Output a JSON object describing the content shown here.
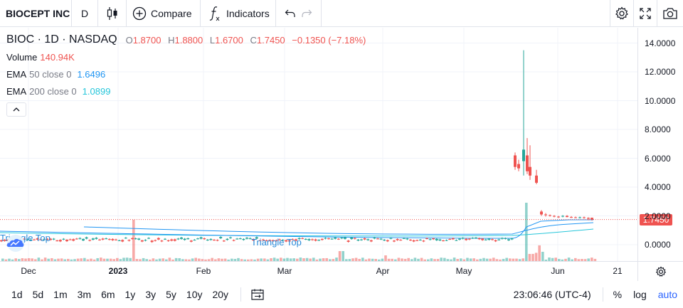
{
  "toolbar": {
    "symbol": "BIOCEPT INC",
    "interval": "D",
    "compare_label": "Compare",
    "indicators_label": "Indicators",
    "icons": [
      "candles-icon",
      "plus-circle-icon",
      "function-icon",
      "undo-icon",
      "redo-icon",
      "gear-icon",
      "fullscreen-icon",
      "camera-icon"
    ]
  },
  "legend": {
    "title": "BIOC · 1D · NASDAQ",
    "o_label": "O",
    "o_value": "1.8700",
    "h_label": "H",
    "h_value": "1.8800",
    "l_label": "L",
    "l_value": "1.6700",
    "c_label": "C",
    "c_value": "1.7450",
    "change": "−0.1350 (−7.18%)",
    "volume_label": "Volume",
    "volume_value": "140.94K",
    "ema50_label": "EMA",
    "ema50_params": "50 close 0",
    "ema50_value": "1.6496",
    "ema200_label": "EMA",
    "ema200_params": "200 close 0",
    "ema200_value": "1.0899"
  },
  "annotations": {
    "pattern_left": "Triangle Top",
    "pattern_mid": "Triangle Top"
  },
  "price_axis": {
    "ticks": [
      "14.0000",
      "12.0000",
      "10.0000",
      "8.0000",
      "6.0000",
      "4.0000",
      "2.0000",
      "0.0000"
    ],
    "last_price": "1.7450"
  },
  "time_axis": {
    "ticks": [
      "Dec",
      "2023",
      "Feb",
      "Mar",
      "Apr",
      "May",
      "Jun",
      "21"
    ]
  },
  "bottom": {
    "ranges": [
      "1d",
      "5d",
      "1m",
      "3m",
      "6m",
      "1y",
      "3y",
      "5y",
      "10y",
      "20y"
    ],
    "clock": "23:06:46 (UTC-4)",
    "percent": "%",
    "log": "log",
    "auto": "auto"
  },
  "colors": {
    "up": "#26a69a",
    "down": "#ef5350",
    "ema50": "#2196f3",
    "ema200": "#26c6da",
    "accent": "#2962ff"
  },
  "chart_data": {
    "type": "candlestick",
    "symbol": "BIOC",
    "interval": "1D",
    "exchange": "NASDAQ",
    "ylim": [
      -1,
      15
    ],
    "x_ticks": [
      "Dec",
      "2023",
      "Feb",
      "Mar",
      "Apr",
      "May",
      "Jun",
      "21"
    ],
    "y_ticks": [
      0,
      2,
      4,
      6,
      8,
      10,
      12,
      14
    ],
    "last_close": 1.745,
    "approx_candles": [
      {
        "period": "Dec–mid May",
        "close_approx": 0.3
      },
      {
        "period": "late May spike",
        "high": 13.5,
        "low": 4.8,
        "open": 5.5,
        "close": 6.5
      },
      {
        "period": "late May",
        "open": 6.8,
        "close": 4.4
      },
      {
        "period": "early Jun",
        "close_approx": 2.1
      },
      {
        "period": "mid Jun",
        "close_approx": 1.9
      },
      {
        "period": "latest",
        "open": 1.87,
        "high": 1.88,
        "low": 1.67,
        "close": 1.745
      }
    ]
  }
}
